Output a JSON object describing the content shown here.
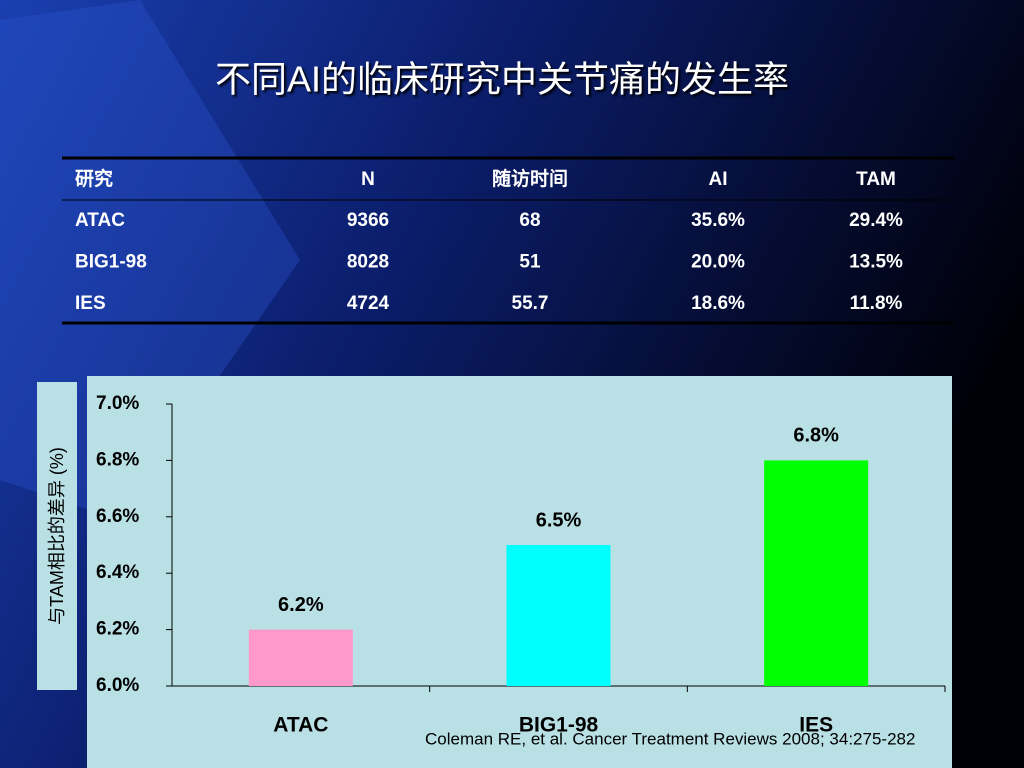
{
  "title": "不同AI的临床研究中关节痛的发生率",
  "table": {
    "header": [
      "研究",
      "N",
      "随访时间",
      "AI",
      "TAM"
    ],
    "rows": [
      [
        "ATAC",
        "9366",
        "68",
        "35.6%",
        "29.4%"
      ],
      [
        "BIG1-98",
        "8028",
        "51",
        "20.0%",
        "13.5%"
      ],
      [
        "IES",
        "4724",
        "55.7",
        "18.6%",
        "11.8%"
      ]
    ]
  },
  "chart_data": {
    "type": "bar",
    "y_label": "与TAM相比的差异 (%)",
    "categories": [
      "ATAC",
      "BIG1-98",
      "IES"
    ],
    "values": [
      6.2,
      6.5,
      6.8
    ],
    "value_labels": [
      "6.2%",
      "6.5%",
      "6.8%"
    ],
    "colors": [
      "#ff99cc",
      "#00ffff",
      "#00ff00"
    ],
    "ylim": [
      6.0,
      7.0
    ],
    "yticks": [
      {
        "value": 6.0,
        "label": "6.0%"
      },
      {
        "value": 6.2,
        "label": "6.2%"
      },
      {
        "value": 6.4,
        "label": "6.4%"
      },
      {
        "value": 6.6,
        "label": "6.6%"
      },
      {
        "value": 6.8,
        "label": "6.8%"
      },
      {
        "value": 7.0,
        "label": "7.0%"
      }
    ]
  },
  "citation": "Coleman RE, et al. Cancer Treatment Reviews 2008; 34:275-282"
}
